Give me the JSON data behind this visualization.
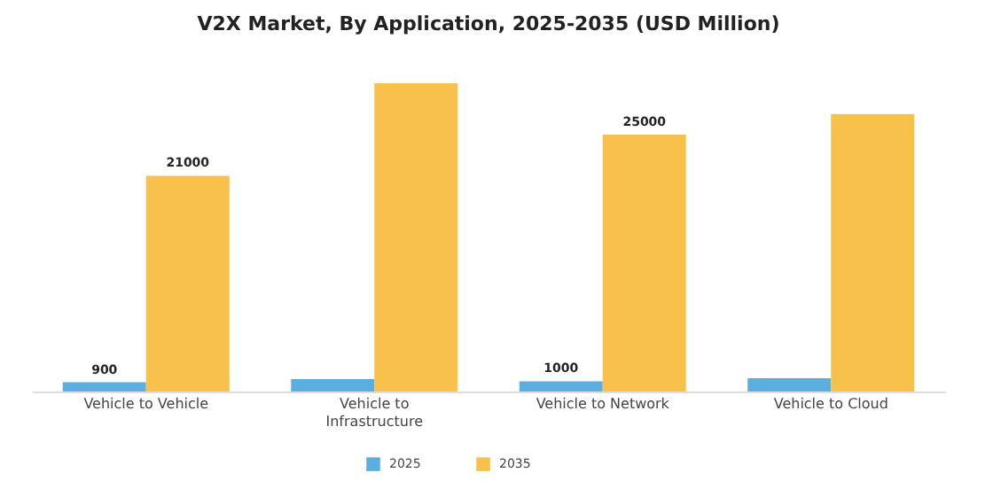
{
  "chart_data": {
    "type": "bar",
    "title": "V2X Market, By Application, 2025-2035 (USD Million)",
    "categories": [
      "Vehicle to Vehicle",
      "Vehicle to Infrastructure",
      "Vehicle to Network",
      "Vehicle to Cloud"
    ],
    "series": [
      {
        "name": "2025",
        "color": "#5aaee0",
        "values": [
          900,
          1200,
          1000,
          1300
        ],
        "value_labels": [
          "900",
          null,
          "1000",
          null
        ]
      },
      {
        "name": "2035",
        "color": "#f8c14b",
        "values": [
          21000,
          30000,
          25000,
          27000
        ],
        "value_labels": [
          "21000",
          null,
          "25000",
          null
        ]
      }
    ],
    "legend": "bottom",
    "grid": false
  }
}
